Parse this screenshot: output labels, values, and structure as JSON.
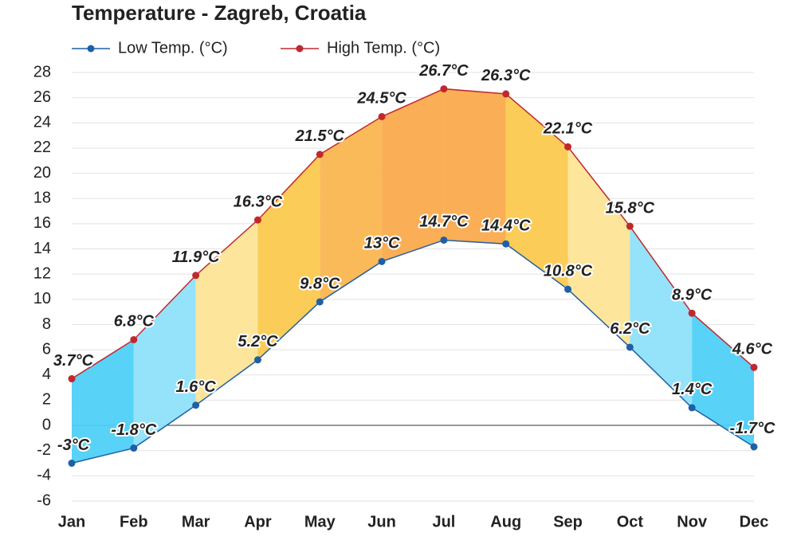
{
  "chart_data": {
    "type": "line",
    "title": "Temperature - Zagreb, Croatia",
    "categories": [
      "Jan",
      "Feb",
      "Mar",
      "Apr",
      "May",
      "Jun",
      "Jul",
      "Aug",
      "Sep",
      "Oct",
      "Nov",
      "Dec"
    ],
    "series": [
      {
        "name": "Low Temp. (°C)",
        "color": "#1f5fa6",
        "values": [
          -3,
          -1.8,
          1.6,
          5.2,
          9.8,
          13,
          14.7,
          14.4,
          10.8,
          6.2,
          1.4,
          -1.7
        ],
        "value_labels": [
          "-3°C",
          "-1.8°C",
          "1.6°C",
          "5.2°C",
          "9.8°C",
          "13°C",
          "14.7°C",
          "14.4°C",
          "10.8°C",
          "6.2°C",
          "1.4°C",
          "-1.7°C"
        ]
      },
      {
        "name": "High Temp. (°C)",
        "color": "#c0282d",
        "values": [
          3.7,
          6.8,
          11.9,
          16.3,
          21.5,
          24.5,
          26.7,
          26.3,
          22.1,
          15.8,
          8.9,
          4.6
        ],
        "value_labels": [
          "3.7°C",
          "6.8°C",
          "11.9°C",
          "16.3°C",
          "21.5°C",
          "24.5°C",
          "26.7°C",
          "26.3°C",
          "22.1°C",
          "15.8°C",
          "8.9°C",
          "4.6°C"
        ]
      }
    ],
    "ylim": [
      -6,
      28
    ],
    "yticks": [
      -6,
      -4,
      -2,
      0,
      2,
      4,
      6,
      8,
      10,
      12,
      14,
      16,
      18,
      20,
      22,
      24,
      26,
      28
    ],
    "grid": true,
    "legend": "top-left"
  }
}
